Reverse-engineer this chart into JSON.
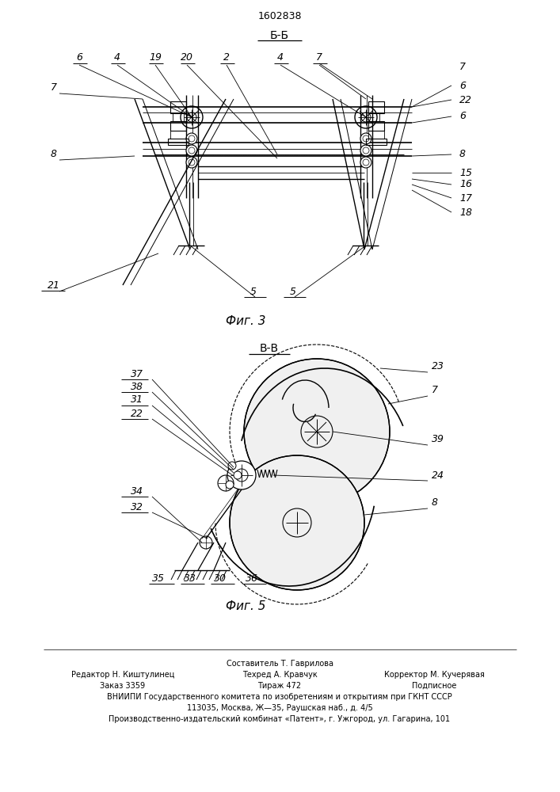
{
  "patent_number": "1602838",
  "fig3_label": "Б-Б",
  "fig5_label": "В-В",
  "fig3_caption": "Фиг. 3",
  "fig5_caption": "Фиг. 5",
  "footer_line1_center": "Составитель Т. Гаврилова",
  "footer_line2_left": "Редактор Н. Киштулинец",
  "footer_line2_center": "Техред А. Кравчук",
  "footer_line2_right": "Корректор М. Кучерявая",
  "footer_line3_left": "Заказ 3359",
  "footer_line3_center": "Тираж 472",
  "footer_line3_right": "Подписное",
  "footer_line4": "ВНИИПИ Государственного комитета по изобретениям и открытиям при ГКНТ СССР",
  "footer_line5": "113035, Москва, Ж—35, Раушская наб., д. 4/5",
  "footer_line6": "Производственно-издательский комбинат «Патент», г. Ужгород, ул. Гагарина, 101"
}
